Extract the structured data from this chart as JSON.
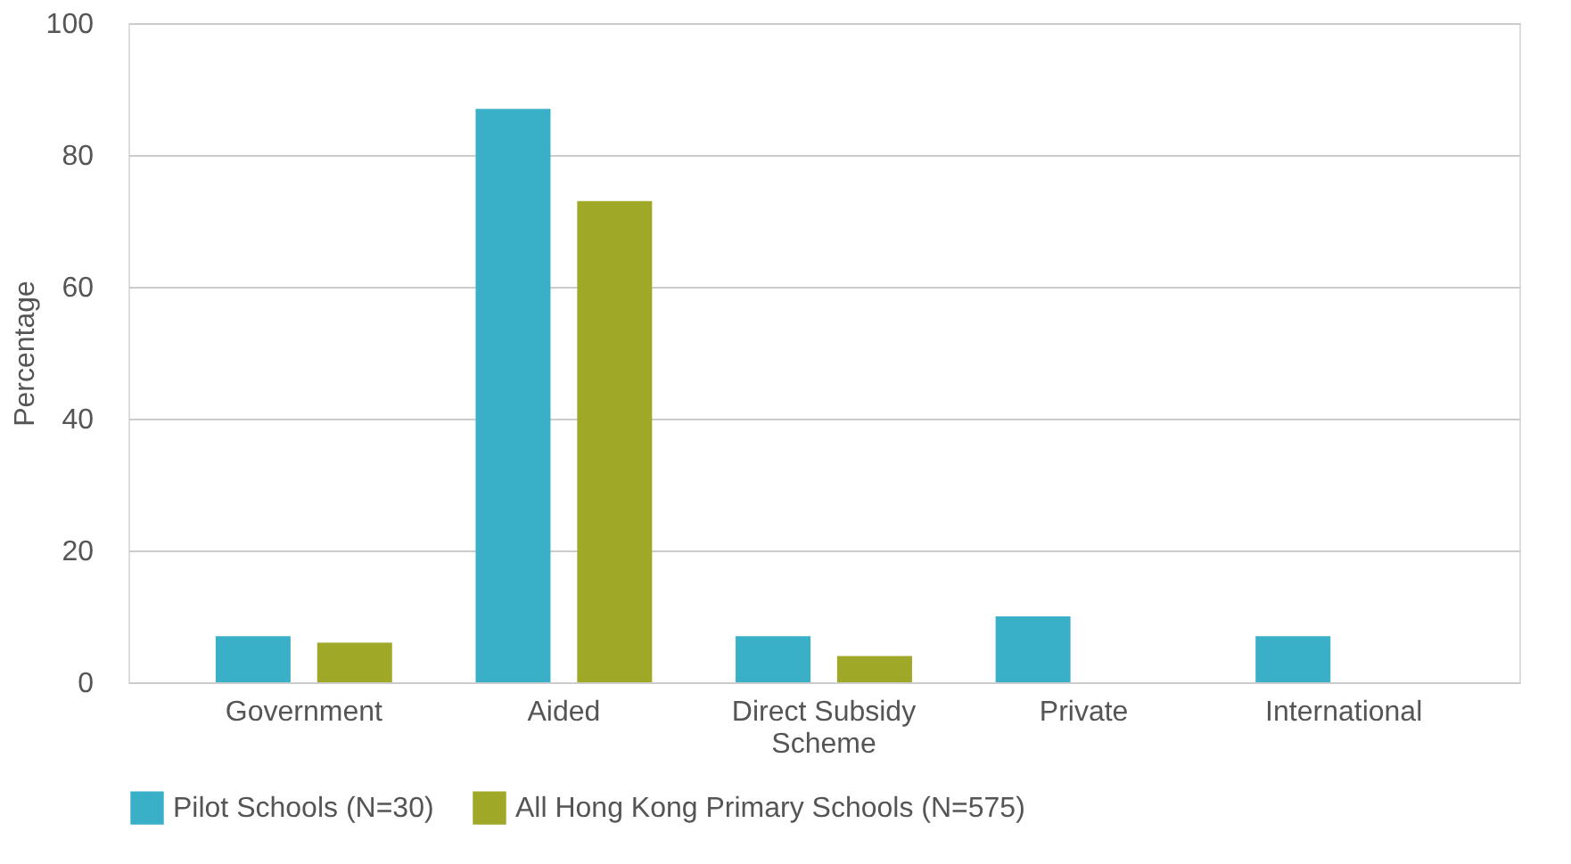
{
  "chart_data": {
    "type": "bar",
    "ylabel": "Percentage",
    "categories": [
      "Government",
      "Aided",
      "Direct Subsidy\nScheme",
      "Private",
      "International"
    ],
    "series": [
      {
        "name": "Pilot Schools (N=30)",
        "color": "#3ab0c8",
        "values": [
          7,
          87,
          7,
          10,
          7
        ]
      },
      {
        "name": "All Hong Kong Primary Schools (N=575)",
        "color": "#a0a828",
        "values": [
          6,
          73,
          4,
          null,
          null
        ]
      }
    ],
    "ylim": [
      0,
      100
    ],
    "yticks": [
      0,
      20,
      40,
      60,
      80,
      100
    ],
    "grid": "y",
    "legend": "bottom"
  }
}
